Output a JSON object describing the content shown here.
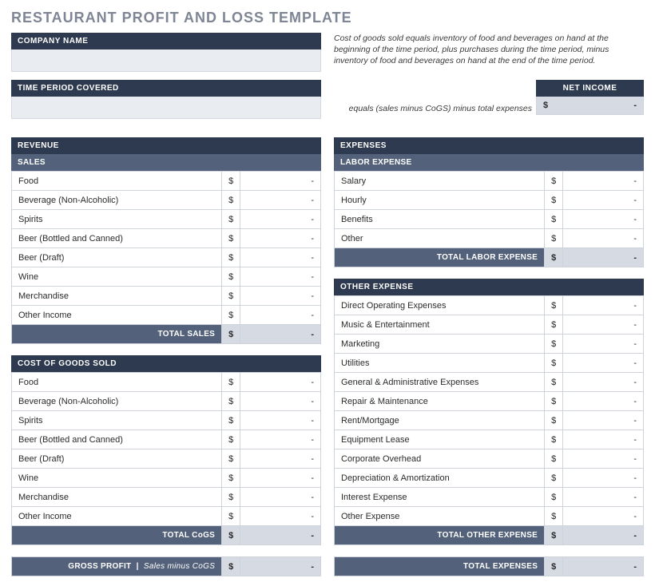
{
  "title": "RESTAURANT PROFIT AND LOSS TEMPLATE",
  "company_name_label": "COMPANY NAME",
  "time_period_label": "TIME PERIOD COVERED",
  "cogs_note": "Cost of goods sold equals inventory of food and beverages on hand at the beginning of the time period, plus purchases during the time period, minus inventory of food and beverages on hand at the end of the time period.",
  "net_income_label": "NET INCOME",
  "net_income_note": "equals (sales minus CoGS) minus total expenses",
  "net_income": {
    "currency": "$",
    "value": "-"
  },
  "revenue": {
    "header": "REVENUE",
    "sales_header": "SALES",
    "rows": [
      {
        "label": "Food",
        "currency": "$",
        "value": "-"
      },
      {
        "label": "Beverage (Non-Alcoholic)",
        "currency": "$",
        "value": "-"
      },
      {
        "label": "Spirits",
        "currency": "$",
        "value": "-"
      },
      {
        "label": "Beer (Bottled and Canned)",
        "currency": "$",
        "value": "-"
      },
      {
        "label": "Beer (Draft)",
        "currency": "$",
        "value": "-"
      },
      {
        "label": "Wine",
        "currency": "$",
        "value": "-"
      },
      {
        "label": "Merchandise",
        "currency": "$",
        "value": "-"
      },
      {
        "label": "Other  Income",
        "currency": "$",
        "value": "-"
      }
    ],
    "total_label": "TOTAL SALES",
    "total": {
      "currency": "$",
      "value": "-"
    }
  },
  "cogs": {
    "header": "COST OF GOODS SOLD",
    "rows": [
      {
        "label": "Food",
        "currency": "$",
        "value": "-"
      },
      {
        "label": "Beverage (Non-Alcoholic)",
        "currency": "$",
        "value": "-"
      },
      {
        "label": "Spirits",
        "currency": "$",
        "value": "-"
      },
      {
        "label": "Beer (Bottled and Canned)",
        "currency": "$",
        "value": "-"
      },
      {
        "label": "Beer (Draft)",
        "currency": "$",
        "value": "-"
      },
      {
        "label": "Wine",
        "currency": "$",
        "value": "-"
      },
      {
        "label": "Merchandise",
        "currency": "$",
        "value": "-"
      },
      {
        "label": "Other  Income",
        "currency": "$",
        "value": "-"
      }
    ],
    "total_label": "TOTAL CoGS",
    "total": {
      "currency": "$",
      "value": "-"
    }
  },
  "gross_profit": {
    "label": "GROSS PROFIT",
    "sublabel": "Sales minus CoGS",
    "currency": "$",
    "value": "-"
  },
  "expenses": {
    "header": "EXPENSES",
    "labor_header": "LABOR EXPENSE",
    "labor_rows": [
      {
        "label": "Salary",
        "currency": "$",
        "value": "-"
      },
      {
        "label": "Hourly",
        "currency": "$",
        "value": "-"
      },
      {
        "label": "Benefits",
        "currency": "$",
        "value": "-"
      },
      {
        "label": "Other",
        "currency": "$",
        "value": "-"
      }
    ],
    "labor_total_label": "TOTAL LABOR EXPENSE",
    "labor_total": {
      "currency": "$",
      "value": "-"
    },
    "other_header": "OTHER EXPENSE",
    "other_rows": [
      {
        "label": "Direct Operating Expenses",
        "currency": "$",
        "value": "-"
      },
      {
        "label": "Music & Entertainment",
        "currency": "$",
        "value": "-"
      },
      {
        "label": "Marketing",
        "currency": "$",
        "value": "-"
      },
      {
        "label": "Utilities",
        "currency": "$",
        "value": "-"
      },
      {
        "label": "General & Administrative Expenses",
        "currency": "$",
        "value": "-"
      },
      {
        "label": "Repair & Maintenance",
        "currency": "$",
        "value": "-"
      },
      {
        "label": "Rent/Mortgage",
        "currency": "$",
        "value": "-"
      },
      {
        "label": "Equipment Lease",
        "currency": "$",
        "value": "-"
      },
      {
        "label": "Corporate Overhead",
        "currency": "$",
        "value": "-"
      },
      {
        "label": "Depreciation & Amortization",
        "currency": "$",
        "value": "-"
      },
      {
        "label": "Interest Expense",
        "currency": "$",
        "value": "-"
      },
      {
        "label": "Other Expense",
        "currency": "$",
        "value": "-"
      }
    ],
    "other_total_label": "TOTAL OTHER EXPENSE",
    "other_total": {
      "currency": "$",
      "value": "-"
    },
    "grand_total_label": "TOTAL EXPENSES",
    "grand_total": {
      "currency": "$",
      "value": "-"
    }
  },
  "colors": {
    "dark_header": "#2e3a4f",
    "mid_header": "#53617a",
    "pale_body": "#e9ecf0",
    "total_fill": "#d6dae2",
    "border": "#cfd3db",
    "title_gray": "#7e8594"
  }
}
